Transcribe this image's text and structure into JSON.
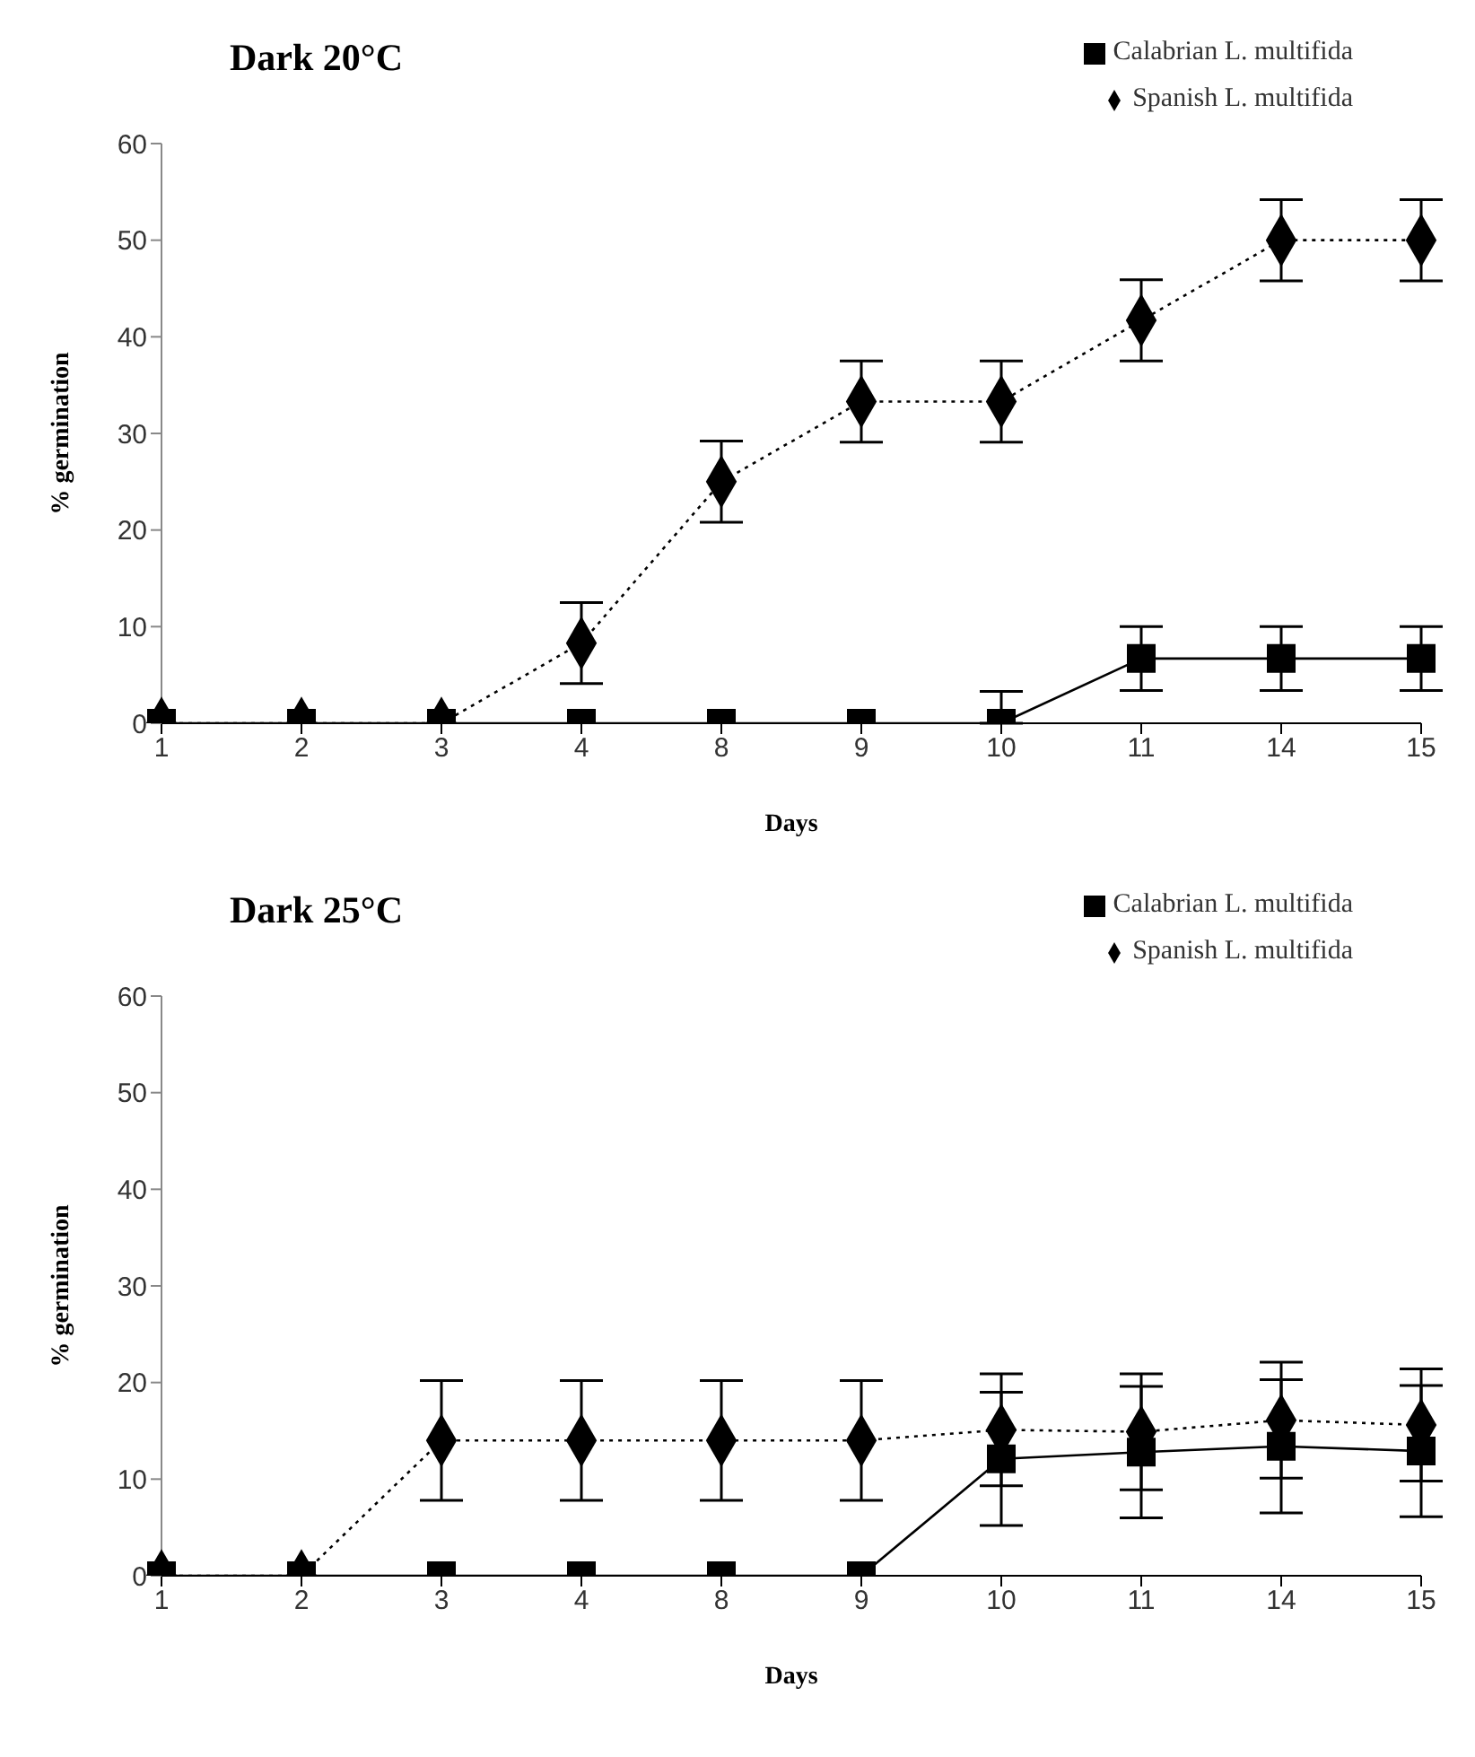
{
  "chart_data": [
    {
      "type": "line",
      "title": "Dark 20°C",
      "xlabel": "Days",
      "ylabel": "% germination",
      "categories": [
        "1",
        "2",
        "3",
        "4",
        "8",
        "9",
        "10",
        "11",
        "14",
        "15"
      ],
      "series": [
        {
          "name": "Calabrian L. multifida",
          "color": "#000000",
          "marker": "square",
          "line_style": "solid",
          "values": [
            0,
            0,
            0,
            0,
            0,
            0,
            0,
            6.7,
            6.7,
            6.7
          ],
          "errors": [
            null,
            null,
            null,
            null,
            null,
            null,
            [
              0,
              3.3
            ],
            3.3,
            3.3,
            3.3
          ]
        },
        {
          "name": "Spanish L. multifida",
          "color": "#000000",
          "marker": "diamond",
          "line_style": "dotted",
          "values": [
            0,
            0,
            0,
            8.3,
            25,
            33.3,
            33.3,
            41.7,
            50,
            50
          ],
          "errors": [
            null,
            null,
            null,
            4.2,
            4.2,
            4.2,
            4.2,
            4.2,
            4.2,
            4.2
          ]
        }
      ],
      "ylim": [
        0,
        60
      ],
      "yticks": [
        0,
        10,
        20,
        30,
        40,
        50,
        60
      ],
      "grid": false,
      "legend": "top right"
    },
    {
      "type": "line",
      "title": "Dark 25°C",
      "xlabel": "Days",
      "ylabel": "% germination",
      "categories": [
        "1",
        "2",
        "3",
        "4",
        "8",
        "9",
        "10",
        "11",
        "14",
        "15"
      ],
      "series": [
        {
          "name": "Calabrian L. multifida",
          "color": "#000000",
          "marker": "square",
          "line_style": "solid",
          "values": [
            0,
            0,
            0,
            0,
            0,
            0,
            12.1,
            12.8,
            13.4,
            12.9
          ],
          "errors": [
            null,
            null,
            null,
            null,
            null,
            null,
            6.9,
            6.8,
            6.9,
            6.8
          ]
        },
        {
          "name": "Spanish L. multifida",
          "color": "#000000",
          "marker": "diamond",
          "line_style": "dotted",
          "values": [
            0,
            0,
            14,
            14,
            14,
            14,
            15.1,
            14.9,
            16.1,
            15.6
          ],
          "errors": [
            null,
            null,
            6.2,
            6.2,
            6.2,
            6.2,
            5.8,
            6.0,
            6.0,
            5.8
          ]
        }
      ],
      "ylim": [
        0,
        60
      ],
      "yticks": [
        0,
        10,
        20,
        30,
        40,
        50,
        60
      ],
      "grid": false,
      "legend": "top right"
    }
  ]
}
